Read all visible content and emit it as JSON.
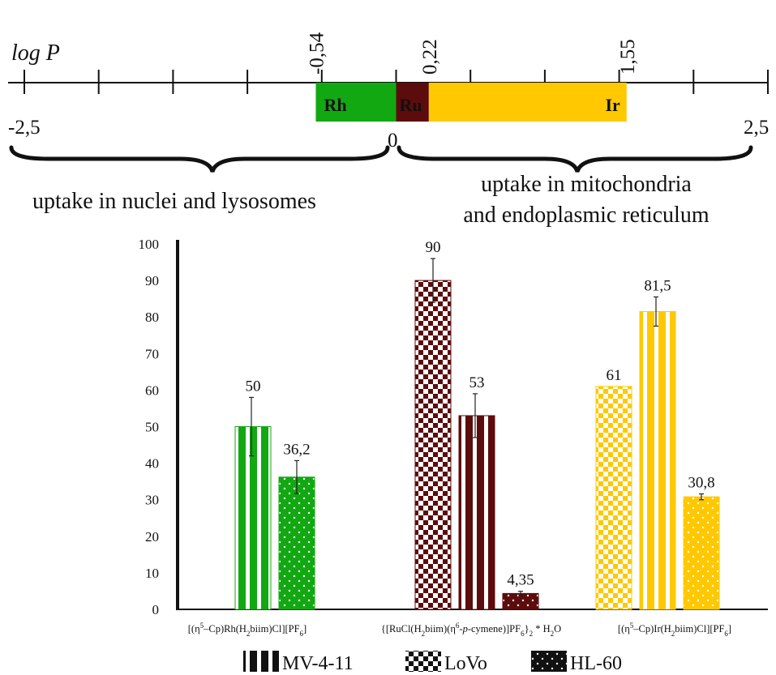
{
  "logp_scale": {
    "title": "log P",
    "range": [
      -2.5,
      2.5
    ],
    "ticks": [
      -2.5,
      -2.0,
      -1.5,
      -1.0,
      -0.5,
      0,
      0.5,
      1.0,
      1.5,
      2.0,
      2.5
    ],
    "end_labels": {
      "min": "-2,5",
      "zero": "0",
      "max": "2,5"
    },
    "segments": [
      {
        "name": "Rh",
        "from": -0.54,
        "to": 0.0,
        "label": "-0,54",
        "color": "#12a812",
        "text_color": "#101010"
      },
      {
        "name": "Ru",
        "from": 0.0,
        "to": 0.22,
        "label": "0,22",
        "color": "#5c0c0c",
        "text_color": "#f0f0f0"
      },
      {
        "name": "Ir",
        "from": 0.22,
        "to": 1.55,
        "label": "1,55",
        "color": "#ffc800",
        "text_color": "#101010"
      }
    ],
    "brace_left_text": "uptake in nuclei and lysosomes",
    "brace_right_text": [
      "uptake in mitochondria",
      "and endoplasmic reticulum"
    ]
  },
  "chart_data": {
    "type": "bar",
    "ylim": [
      0,
      100
    ],
    "yticks": [
      0,
      10,
      20,
      30,
      40,
      50,
      60,
      70,
      80,
      90,
      100
    ],
    "groups": [
      {
        "name": "Rh",
        "label_parts": [
          "[(η",
          "5",
          "–Cp)Rh(H",
          "2",
          "biim)Cl][PF",
          "6",
          "]"
        ],
        "label_kinds": [
          "n",
          "sup",
          "n",
          "sub",
          "n",
          "sub",
          "n"
        ],
        "color": "#12a812",
        "bars": [
          {
            "series": "MV-4-11",
            "value": 50,
            "error": 8,
            "label": "50"
          },
          {
            "series": "HL-60",
            "value": 36.2,
            "error": 4.5,
            "label": "36,2"
          }
        ]
      },
      {
        "name": "Ru",
        "label_parts": [
          "{[RuCl(H",
          "2",
          "biim)(η",
          "6",
          "-",
          "p",
          "-cymene)]PF",
          "6",
          "}",
          "2",
          " * H",
          "2",
          "O"
        ],
        "label_kinds": [
          "n",
          "sub",
          "n",
          "sup",
          "n",
          "it",
          "n",
          "sub",
          "n",
          "sub",
          "n",
          "sub",
          "n"
        ],
        "color": "#5c0c0c",
        "bars": [
          {
            "series": "LoVo",
            "value": 90,
            "error": 6,
            "label": "90"
          },
          {
            "series": "MV-4-11",
            "value": 53,
            "error": 6,
            "label": "53"
          },
          {
            "series": "HL-60",
            "value": 4.35,
            "error": 0.6,
            "label": "4,35"
          }
        ]
      },
      {
        "name": "Ir",
        "label_parts": [
          "[(η",
          "5",
          "–Cp)Ir(H",
          "2",
          "biim)Cl][PF",
          "6",
          "]"
        ],
        "label_kinds": [
          "n",
          "sup",
          "n",
          "sub",
          "n",
          "sub",
          "n"
        ],
        "color": "#ffc800",
        "bars": [
          {
            "series": "LoVo",
            "value": 61,
            "error": 0,
            "label": "61"
          },
          {
            "series": "MV-4-11",
            "value": 81.5,
            "error": 4,
            "label": "81,5"
          },
          {
            "series": "HL-60",
            "value": 30.8,
            "error": 0.8,
            "label": "30,8"
          }
        ]
      }
    ],
    "legend": [
      {
        "series": "MV-4-11",
        "pattern": "stripes",
        "label": "MV-4-11"
      },
      {
        "series": "LoVo",
        "pattern": "checker",
        "label": "LoVo"
      },
      {
        "series": "HL-60",
        "pattern": "dots",
        "label": "HL-60"
      }
    ],
    "legend_position": "bottom"
  }
}
